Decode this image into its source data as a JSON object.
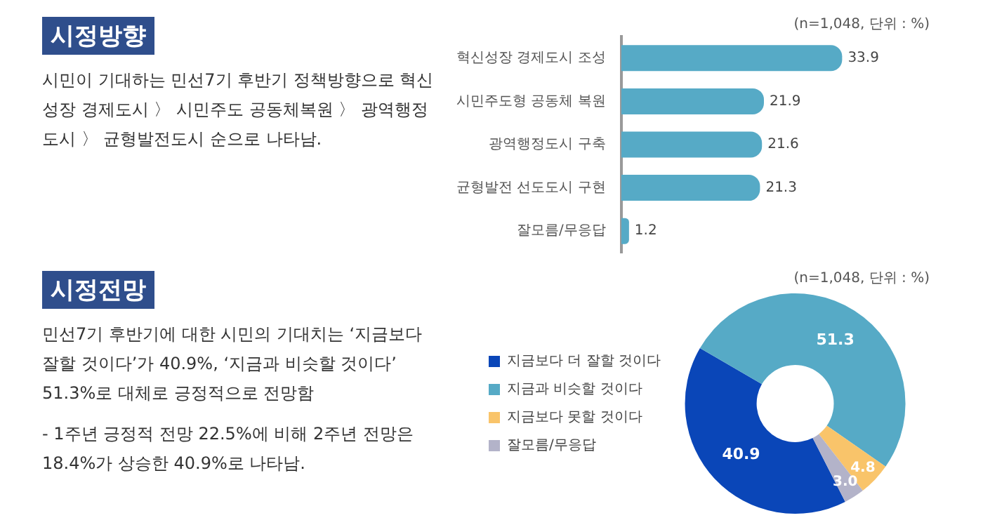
{
  "chart_data": [
    {
      "type": "other",
      "title": "시정방향",
      "annotations": [
        "시민이 기대하는 민선7기 후반기 정책방향으로 혁신성장 경제도시 〉 시민주도 공동체복원 〉 광역행정도시 〉 균형발전도시 순으로 나타남."
      ]
    },
    {
      "type": "bar",
      "orientation": "horizontal",
      "subtitle": "(n=1,048, 단위 : %)",
      "categories": [
        "혁신성장 경제도시 조성",
        "시민주도형 공동체 복원",
        "광역행정도시 구축",
        "균형발전 선도도시 구현",
        "잘모름/무응답"
      ],
      "values": [
        33.9,
        21.9,
        21.6,
        21.3,
        1.2
      ],
      "color": "#56aac6",
      "data_labels": true
    },
    {
      "type": "other",
      "title": "시정전망",
      "annotations": [
        "민선7기 후반기에 대한 시민의 기대치는 ‘지금보다 잘할 것이다’가 40.9%, ‘지금과 비슷할 것이다’ 51.3%로 대체로 긍정적으로 전망함",
        "- 1주년 긍정적 전망 22.5%에 비해 2주년 전망은 18.4%가 상승한 40.9%로 나타남."
      ]
    },
    {
      "type": "donut",
      "subtitle": "(n=1,048, 단위 : %)",
      "categories": [
        "지금보다 더 잘할 것이다",
        "지금과 비슷할 것이다",
        "지금보다 못할 것이다",
        "잘모름/무응답"
      ],
      "values": [
        40.9,
        51.3,
        4.8,
        3.0
      ],
      "value_labels": [
        "40.9",
        "51.3",
        "4.8",
        "3.0"
      ],
      "colors": [
        "#0a46b8",
        "#56aac6",
        "#f9c46a",
        "#b3b3c9"
      ],
      "legend": "left"
    }
  ]
}
